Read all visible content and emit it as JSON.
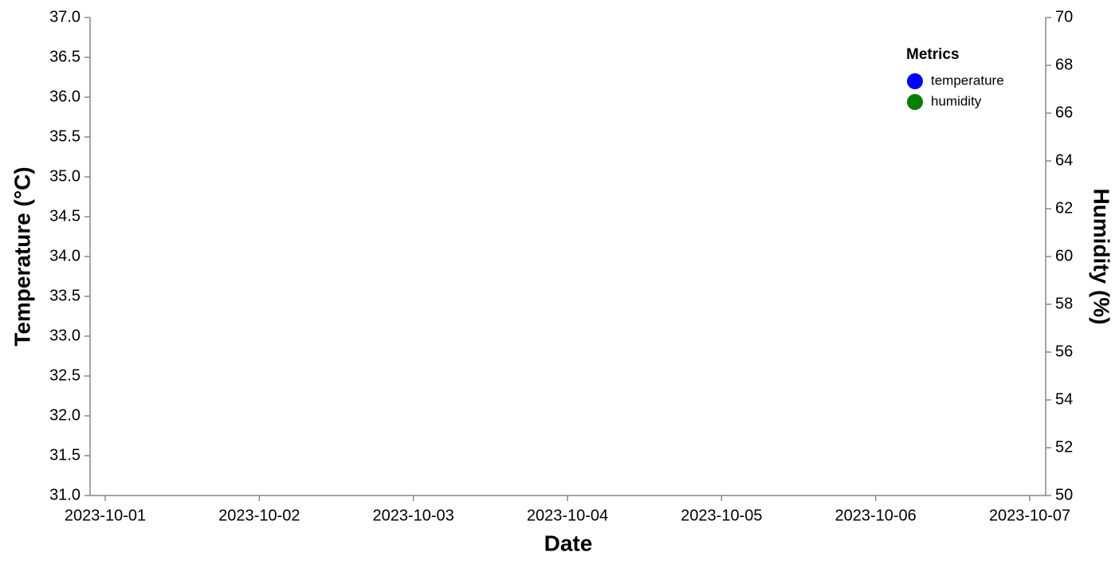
{
  "chart_data": {
    "type": "line",
    "x_label": "Date",
    "y_label": "Temperature (°C)",
    "y2_label": "Humidity (%)",
    "xticks": [
      "2023-10-01",
      "2023-10-02",
      "2023-10-03",
      "2023-10-04",
      "2023-10-05",
      "2023-10-06",
      "2023-10-07"
    ],
    "ylim": [
      31,
      37
    ],
    "yticks": [
      {
        "value": 31,
        "label": "31.0"
      },
      31.5,
      {
        "value": 32,
        "label": "32.0"
      },
      32.5,
      {
        "value": 33,
        "label": "33.0"
      },
      33.5,
      {
        "value": 34,
        "label": "34.0"
      },
      34.5,
      {
        "value": 35,
        "label": "35.0"
      },
      35.5,
      {
        "value": 36,
        "label": "36.0"
      },
      36.5,
      {
        "value": 37,
        "label": "37.0"
      }
    ],
    "y2lim": [
      50,
      70
    ],
    "y2ticks": [
      50,
      52,
      54,
      56,
      58,
      60,
      62,
      64,
      66,
      68,
      70
    ],
    "legend_title": "Metrics",
    "legend_position": "top-right",
    "series": [
      {
        "name": "temperature",
        "color": "#0000ff"
      },
      {
        "name": "humidity",
        "color": "#008000",
        "axis": "y2"
      }
    ]
  }
}
